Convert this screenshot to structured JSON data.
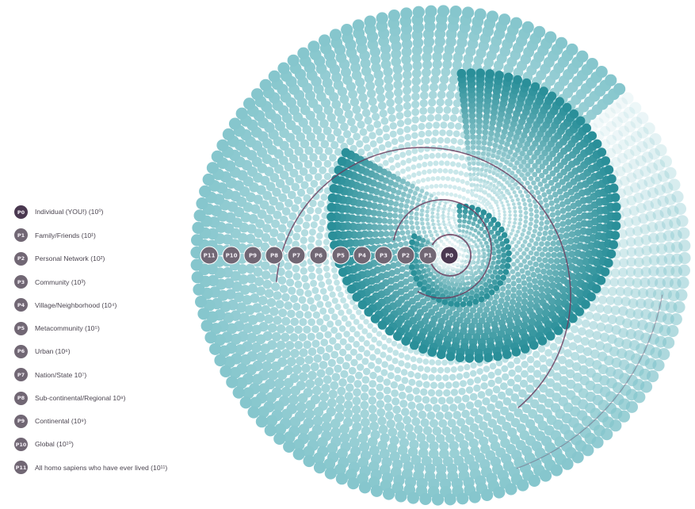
{
  "legend": {
    "items": [
      {
        "code": "P0",
        "label": "Individual (YOU!) (10⁰)"
      },
      {
        "code": "P1",
        "label": "Family/Friends (10¹)"
      },
      {
        "code": "P2",
        "label": "Personal Network (10²)"
      },
      {
        "code": "P3",
        "label": "Community (10³)"
      },
      {
        "code": "P4",
        "label": "Village/Neighborhood (10⁴)"
      },
      {
        "code": "P5",
        "label": "Metacommunity (10⁵)"
      },
      {
        "code": "P6",
        "label": "Urban (10⁶)"
      },
      {
        "code": "P7",
        "label": "Nation/State 10⁷)"
      },
      {
        "code": "P8",
        "label": "Sub-continental/Regional 10⁸)"
      },
      {
        "code": "P9",
        "label": "Continental (10⁹)"
      },
      {
        "code": "P10",
        "label": "Global (10¹⁰)"
      },
      {
        "code": "P11",
        "label": "All homo sapiens who have ever lived (10¹¹)"
      }
    ]
  },
  "axis_badges": [
    "P11",
    "P10",
    "P9",
    "P8",
    "P7",
    "P6",
    "P5",
    "P4",
    "P3",
    "P2",
    "P1",
    "P0"
  ],
  "colors": {
    "badge_dark": "#4a3850",
    "badge": "#716774",
    "dot_outer": "#7cc5cc",
    "dot_inner": "#1e8a95",
    "spiral_line": "#6b3d5e"
  }
}
